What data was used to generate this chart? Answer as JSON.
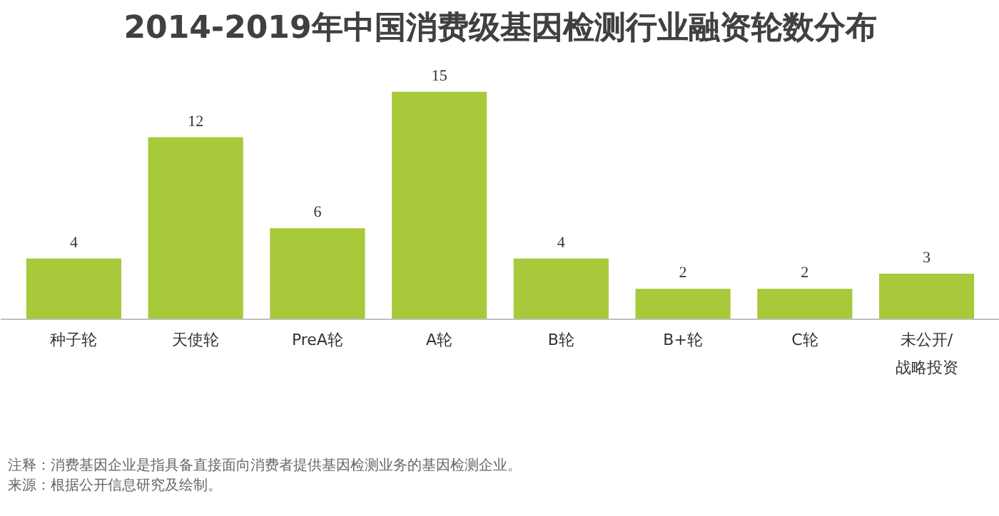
{
  "chart_data": {
    "type": "bar",
    "title": "2014-2019年中国消费级基因检测行业融资轮数分布",
    "categories": [
      "种子轮",
      "天使轮",
      "PreA轮",
      "A轮",
      "B轮",
      "B+轮",
      "C轮",
      "未公开/\n战略投资"
    ],
    "values": [
      4,
      12,
      6,
      15,
      4,
      2,
      2,
      3
    ],
    "color": "#a7c93a",
    "data_labels": true,
    "annotations": [
      "注释：消费基因企业是指具备直接面向消费者提供基因检测业务的基因检测企业。",
      "来源：根据公开信息研究及绘制。"
    ]
  }
}
